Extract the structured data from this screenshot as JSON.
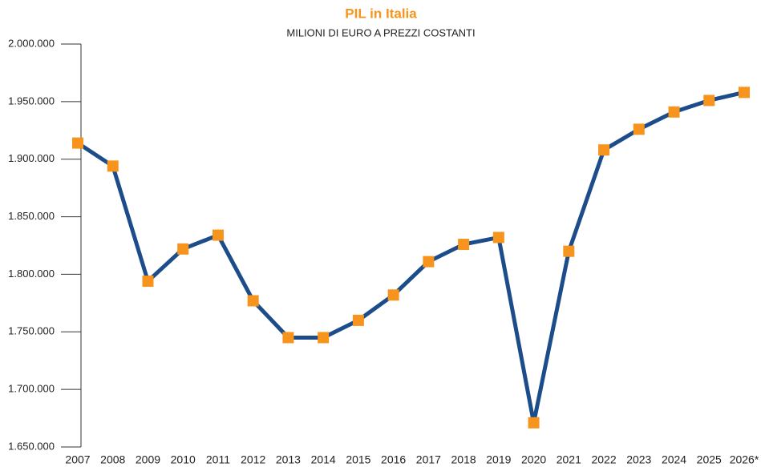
{
  "chart_data": {
    "type": "line",
    "title": "PIL in Italia",
    "subtitle": "MILIONI DI EURO A PREZZI COSTANTI",
    "categories": [
      "2007",
      "2008",
      "2009",
      "2010",
      "2011",
      "2012",
      "2013",
      "2014",
      "2015",
      "2016",
      "2017",
      "2018",
      "2019",
      "2020",
      "2021",
      "2022",
      "2023",
      "2024",
      "2025",
      "2026*"
    ],
    "series": [
      {
        "name": "PIL",
        "color": "#1d4c8a",
        "marker_color": "#f7941d",
        "values": [
          1914000,
          1894000,
          1794000,
          1822000,
          1834000,
          1777000,
          1745000,
          1745000,
          1760000,
          1782000,
          1811000,
          1826000,
          1832000,
          1671000,
          1820000,
          1908000,
          1926000,
          1941000,
          1951000,
          1958000
        ]
      }
    ],
    "ylim": [
      1650000,
      2000000
    ],
    "yticks": [
      {
        "value": 1650000,
        "label": "1.650.000"
      },
      {
        "value": 1700000,
        "label": "1.700.000"
      },
      {
        "value": 1750000,
        "label": "1.750.000"
      },
      {
        "value": 1800000,
        "label": "1.800.000"
      },
      {
        "value": 1850000,
        "label": "1.850.000"
      },
      {
        "value": 1900000,
        "label": "1.900.000"
      },
      {
        "value": 1950000,
        "label": "1.950.000"
      },
      {
        "value": 2000000,
        "label": "2.000.000"
      }
    ],
    "grid": false
  }
}
